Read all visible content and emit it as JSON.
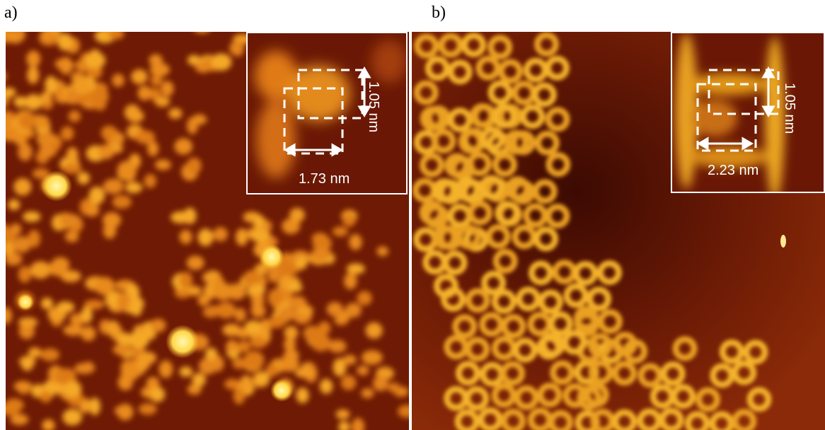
{
  "panels": [
    {
      "label": "a)",
      "inset": {
        "height_text": "1.05 nm",
        "width_text": "1.73 nm"
      }
    },
    {
      "label": "b)",
      "inset": {
        "height_text": "1.05 nm",
        "width_text": "2.23 nm"
      }
    }
  ],
  "colors": {
    "background_dark": "#6e1a04",
    "mid": "#c8560c",
    "bright": "#f6b22a",
    "highlight": "#fff6a8",
    "annotation": "#ffffff"
  }
}
